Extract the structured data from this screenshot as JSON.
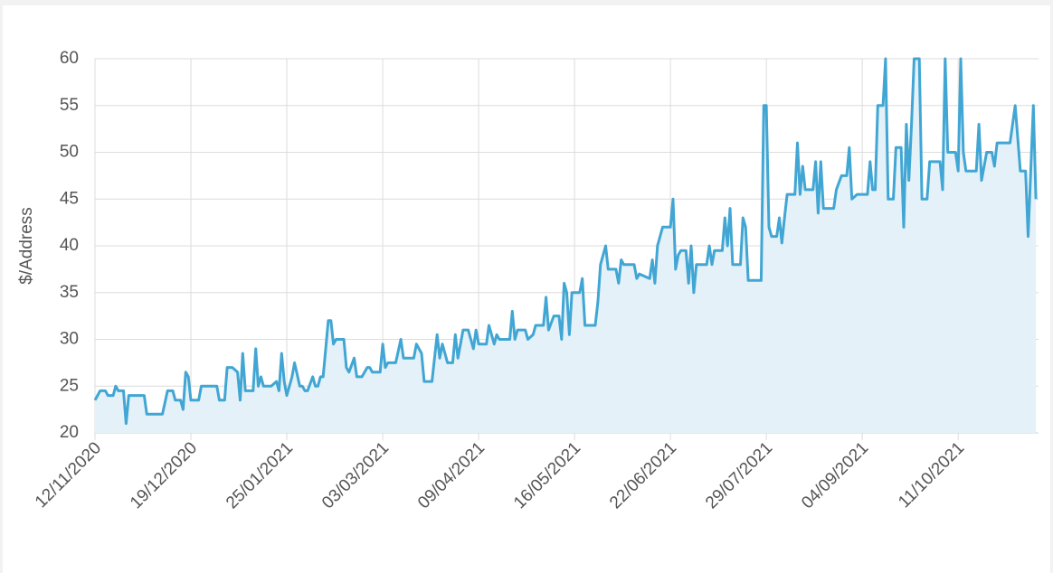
{
  "chart_data": {
    "type": "line",
    "y_label": "$/Address",
    "xlim": [
      "12/11/2020",
      "11/11/2021"
    ],
    "xticks": [
      "12/11/2020",
      "19/12/2020",
      "25/01/2021",
      "03/03/2021",
      "09/04/2021",
      "16/05/2021",
      "22/06/2021",
      "29/07/2021",
      "04/09/2021",
      "11/10/2021"
    ],
    "ylim": [
      20,
      60
    ],
    "yticks": [
      20,
      25,
      30,
      35,
      40,
      45,
      50,
      55,
      60
    ],
    "grid": true,
    "x": [
      "12/11/2020",
      "14/11/2020",
      "16/11/2020",
      "17/11/2020",
      "19/11/2020",
      "20/11/2020",
      "21/11/2020",
      "23/11/2020",
      "24/11/2020",
      "25/11/2020",
      "01/12/2020",
      "02/12/2020",
      "04/12/2020",
      "08/12/2020",
      "10/12/2020",
      "12/12/2020",
      "13/12/2020",
      "15/12/2020",
      "16/12/2020",
      "17/12/2020",
      "18/12/2020",
      "19/12/2020",
      "22/12/2020",
      "23/12/2020",
      "29/12/2020",
      "30/12/2020",
      "01/01/2021",
      "02/01/2021",
      "04/01/2021",
      "06/01/2021",
      "07/01/2021",
      "08/01/2021",
      "09/01/2021",
      "12/01/2021",
      "13/01/2021",
      "14/01/2021",
      "15/01/2021",
      "16/01/2021",
      "19/01/2021",
      "21/01/2021",
      "22/01/2021",
      "23/01/2021",
      "24/01/2021",
      "25/01/2021",
      "27/01/2021",
      "28/01/2021",
      "30/01/2021",
      "31/01/2021",
      "01/02/2021",
      "02/02/2021",
      "04/02/2021",
      "05/02/2021",
      "06/02/2021",
      "07/02/2021",
      "08/02/2021",
      "10/02/2021",
      "11/02/2021",
      "12/02/2021",
      "13/02/2021",
      "16/02/2021",
      "17/02/2021",
      "18/02/2021",
      "20/02/2021",
      "21/02/2021",
      "23/02/2021",
      "25/02/2021",
      "26/02/2021",
      "27/02/2021",
      "02/03/2021",
      "03/03/2021",
      "04/03/2021",
      "05/03/2021",
      "08/03/2021",
      "10/03/2021",
      "11/03/2021",
      "15/03/2021",
      "16/03/2021",
      "18/03/2021",
      "19/03/2021",
      "22/03/2021",
      "24/03/2021",
      "25/03/2021",
      "26/03/2021",
      "28/03/2021",
      "30/03/2021",
      "31/03/2021",
      "01/04/2021",
      "03/04/2021",
      "05/04/2021",
      "07/04/2021",
      "08/04/2021",
      "09/04/2021",
      "12/04/2021",
      "13/04/2021",
      "15/04/2021",
      "16/04/2021",
      "17/04/2021",
      "21/04/2021",
      "22/04/2021",
      "23/04/2021",
      "24/04/2021",
      "27/04/2021",
      "28/04/2021",
      "30/04/2021",
      "01/05/2021",
      "04/05/2021",
      "05/05/2021",
      "06/05/2021",
      "08/05/2021",
      "10/05/2021",
      "11/05/2021",
      "12/05/2021",
      "13/05/2021",
      "14/05/2021",
      "15/05/2021",
      "18/05/2021",
      "19/05/2021",
      "20/05/2021",
      "24/05/2021",
      "25/05/2021",
      "26/05/2021",
      "28/05/2021",
      "29/05/2021",
      "01/06/2021",
      "02/06/2021",
      "03/06/2021",
      "04/06/2021",
      "08/06/2021",
      "09/06/2021",
      "10/06/2021",
      "14/06/2021",
      "15/06/2021",
      "16/06/2021",
      "17/06/2021",
      "19/06/2021",
      "22/06/2021",
      "23/06/2021",
      "24/06/2021",
      "25/06/2021",
      "26/06/2021",
      "28/06/2021",
      "29/06/2021",
      "30/06/2021",
      "01/07/2021",
      "02/07/2021",
      "06/07/2021",
      "07/07/2021",
      "08/07/2021",
      "09/07/2021",
      "12/07/2021",
      "13/07/2021",
      "14/07/2021",
      "15/07/2021",
      "16/07/2021",
      "19/07/2021",
      "20/07/2021",
      "21/07/2021",
      "22/07/2021",
      "27/07/2021",
      "28/07/2021",
      "29/07/2021",
      "30/07/2021",
      "31/07/2021",
      "02/08/2021",
      "03/08/2021",
      "04/08/2021",
      "05/08/2021",
      "06/08/2021",
      "09/08/2021",
      "10/08/2021",
      "11/08/2021",
      "12/08/2021",
      "13/08/2021",
      "16/08/2021",
      "17/08/2021",
      "18/08/2021",
      "19/08/2021",
      "20/08/2021",
      "24/08/2021",
      "25/08/2021",
      "27/08/2021",
      "29/08/2021",
      "30/08/2021",
      "31/08/2021",
      "02/09/2021",
      "06/09/2021",
      "07/09/2021",
      "08/09/2021",
      "09/09/2021",
      "10/09/2021",
      "12/09/2021",
      "13/09/2021",
      "14/09/2021",
      "16/09/2021",
      "17/09/2021",
      "19/09/2021",
      "20/09/2021",
      "21/09/2021",
      "22/09/2021",
      "23/09/2021",
      "24/09/2021",
      "26/09/2021",
      "27/09/2021",
      "29/09/2021",
      "30/09/2021",
      "04/10/2021",
      "05/10/2021",
      "06/10/2021",
      "07/10/2021",
      "10/10/2021",
      "11/10/2021",
      "12/10/2021",
      "13/10/2021",
      "14/10/2021",
      "18/10/2021",
      "19/10/2021",
      "20/10/2021",
      "22/10/2021",
      "24/10/2021",
      "25/10/2021",
      "26/10/2021",
      "31/10/2021",
      "02/11/2021",
      "04/11/2021",
      "06/11/2021",
      "07/11/2021",
      "09/11/2021",
      "10/11/2021"
    ],
    "series": [
      {
        "color": "#41a6d3",
        "fill": "#e4f1f8",
        "values": [
          23.5,
          24.5,
          24.5,
          24,
          24,
          25,
          24.5,
          24.5,
          21,
          24,
          24,
          22,
          22,
          22,
          24.5,
          24.5,
          23.5,
          23.5,
          22.5,
          26.5,
          26,
          23.5,
          23.5,
          25,
          25,
          23.5,
          23.5,
          27,
          27,
          26.5,
          23.5,
          28.5,
          24.5,
          24.5,
          29,
          25,
          26,
          25,
          25,
          25.5,
          24.5,
          28.5,
          25.5,
          24,
          26,
          27.5,
          25,
          25,
          24.5,
          24.5,
          26,
          25,
          25,
          26,
          26,
          32,
          32,
          29.5,
          30,
          30,
          27,
          26.5,
          28,
          26,
          26,
          27,
          27,
          26.5,
          26.5,
          29.5,
          27,
          27.5,
          27.5,
          30,
          28,
          28,
          29.5,
          28.5,
          25.5,
          25.5,
          30.5,
          28,
          29.5,
          27.5,
          27.5,
          30.5,
          28,
          31,
          31,
          29,
          31,
          29.5,
          29.5,
          31.5,
          29.5,
          30.5,
          30,
          30,
          33,
          30,
          31,
          31,
          30,
          30.5,
          31.5,
          31.5,
          34.5,
          31,
          32.5,
          32.5,
          30,
          36,
          35,
          30.5,
          35,
          35,
          36.5,
          31.5,
          31.5,
          34,
          38,
          40,
          37.5,
          37.5,
          36,
          38.5,
          38,
          38,
          36.5,
          37,
          36.5,
          38.5,
          36,
          40,
          42,
          42,
          45,
          37.5,
          39,
          39.5,
          39.5,
          36,
          40,
          35,
          38,
          38,
          40,
          38,
          39.5,
          39.5,
          43,
          40,
          44,
          38,
          38,
          43,
          42,
          36.3,
          36.3,
          55,
          55,
          42,
          41,
          41,
          43,
          40.3,
          43,
          45.5,
          45.5,
          51,
          45.5,
          48.5,
          46,
          46,
          49,
          43.5,
          49,
          44,
          44,
          46,
          47.5,
          47.5,
          50.5,
          45,
          45.5,
          45.5,
          49,
          46,
          46,
          55,
          55,
          60,
          45,
          45,
          50.5,
          50.5,
          42,
          53,
          47,
          53,
          60,
          60,
          45,
          45,
          49,
          49,
          46,
          60,
          50,
          50,
          48,
          60,
          50,
          48,
          48,
          53,
          47,
          50,
          50,
          48.5,
          51,
          51,
          55,
          48,
          48,
          41,
          55,
          45
        ]
      }
    ]
  }
}
